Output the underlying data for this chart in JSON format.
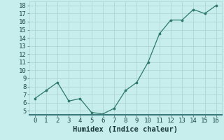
{
  "x": [
    0,
    1,
    2,
    3,
    4,
    5,
    6,
    7,
    8,
    9,
    10,
    11,
    12,
    13,
    14,
    15,
    16
  ],
  "y": [
    6.5,
    7.5,
    8.5,
    6.2,
    6.5,
    4.8,
    4.6,
    5.3,
    7.5,
    8.5,
    11.0,
    14.5,
    16.2,
    16.2,
    17.5,
    17.0,
    18.0
  ],
  "line_color": "#2d7a6a",
  "marker_color": "#2d7a6a",
  "bg_color": "#c8eded",
  "grid_color": "#aed4d4",
  "xlabel": "Humidex (Indice chaleur)",
  "ylim": [
    4.5,
    18.5
  ],
  "xlim": [
    -0.5,
    16.5
  ],
  "yticks": [
    5,
    6,
    7,
    8,
    9,
    10,
    11,
    12,
    13,
    14,
    15,
    16,
    17,
    18
  ],
  "xticks": [
    0,
    1,
    2,
    3,
    4,
    5,
    6,
    7,
    8,
    9,
    10,
    11,
    12,
    13,
    14,
    15,
    16
  ],
  "font_size": 6.5,
  "label_font_size": 7.5,
  "bottom_bar_color": "#3a7a7a"
}
